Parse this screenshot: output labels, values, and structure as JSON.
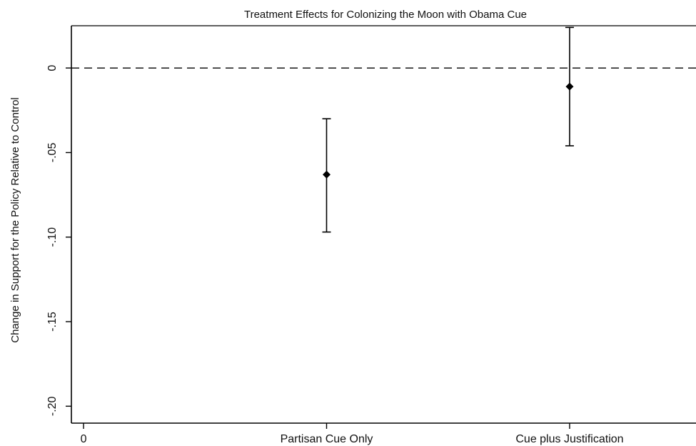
{
  "chart_data": {
    "type": "scatter",
    "title": "Treatment Effects for Colonizing the Moon with Obama Cue",
    "xlabel": "",
    "ylabel": "Change in Support for the Policy Relative to Control",
    "categories": [
      "0",
      "Partisan Cue Only",
      "Cue plus Justification"
    ],
    "x_ticks": [
      {
        "value": 0,
        "label": "0"
      },
      {
        "value": 1,
        "label": "Partisan Cue Only"
      },
      {
        "value": 2,
        "label": "Cue plus Justification"
      }
    ],
    "y_ticks": [
      {
        "value": 0,
        "label": "0"
      },
      {
        "value": -0.05,
        "label": "-.05"
      },
      {
        "value": -0.1,
        "label": "-.10"
      },
      {
        "value": -0.15,
        "label": "-.15"
      },
      {
        "value": -0.2,
        "label": "-.20"
      }
    ],
    "xlim": [
      -0.05,
      2.52
    ],
    "ylim": [
      -0.21,
      0.025
    ],
    "points": [
      {
        "category": "Partisan Cue Only",
        "x": 1,
        "y": -0.063,
        "ci_low": -0.097,
        "ci_high": -0.03
      },
      {
        "category": "Cue plus Justification",
        "x": 2,
        "y": -0.011,
        "ci_low": -0.046,
        "ci_high": 0.024
      }
    ],
    "reference_line": {
      "y": 0,
      "style": "dashed"
    },
    "grid": false,
    "legend": "none",
    "colors": {
      "marker": "#000000",
      "axis": "#000000",
      "text": "#111111"
    }
  }
}
